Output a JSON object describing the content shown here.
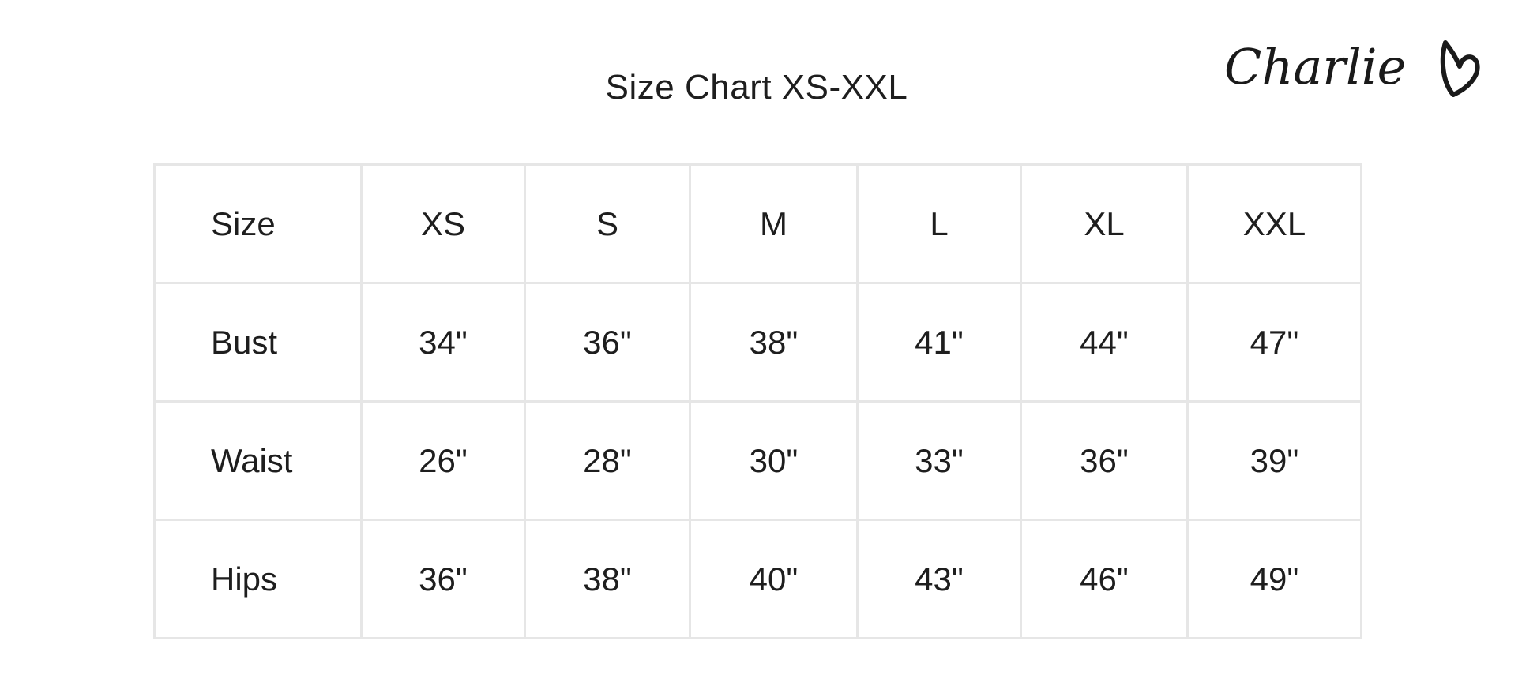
{
  "title": "Size Chart XS-XXL",
  "logo": {
    "text": "Charlie",
    "icon": "heart-icon"
  },
  "table": {
    "header": {
      "label": "Size",
      "sizes": [
        "XS",
        "S",
        "M",
        "L",
        "XL",
        "XXL"
      ]
    },
    "rows": [
      {
        "label": "Bust",
        "values": [
          "34\"",
          "36\"",
          "38\"",
          "41\"",
          "44\"",
          "47\""
        ]
      },
      {
        "label": "Waist",
        "values": [
          "26\"",
          "28\"",
          "30\"",
          "33\"",
          "36\"",
          "39\""
        ]
      },
      {
        "label": "Hips",
        "values": [
          "36\"",
          "38\"",
          "40\"",
          "43\"",
          "46\"",
          "49\""
        ]
      }
    ]
  }
}
